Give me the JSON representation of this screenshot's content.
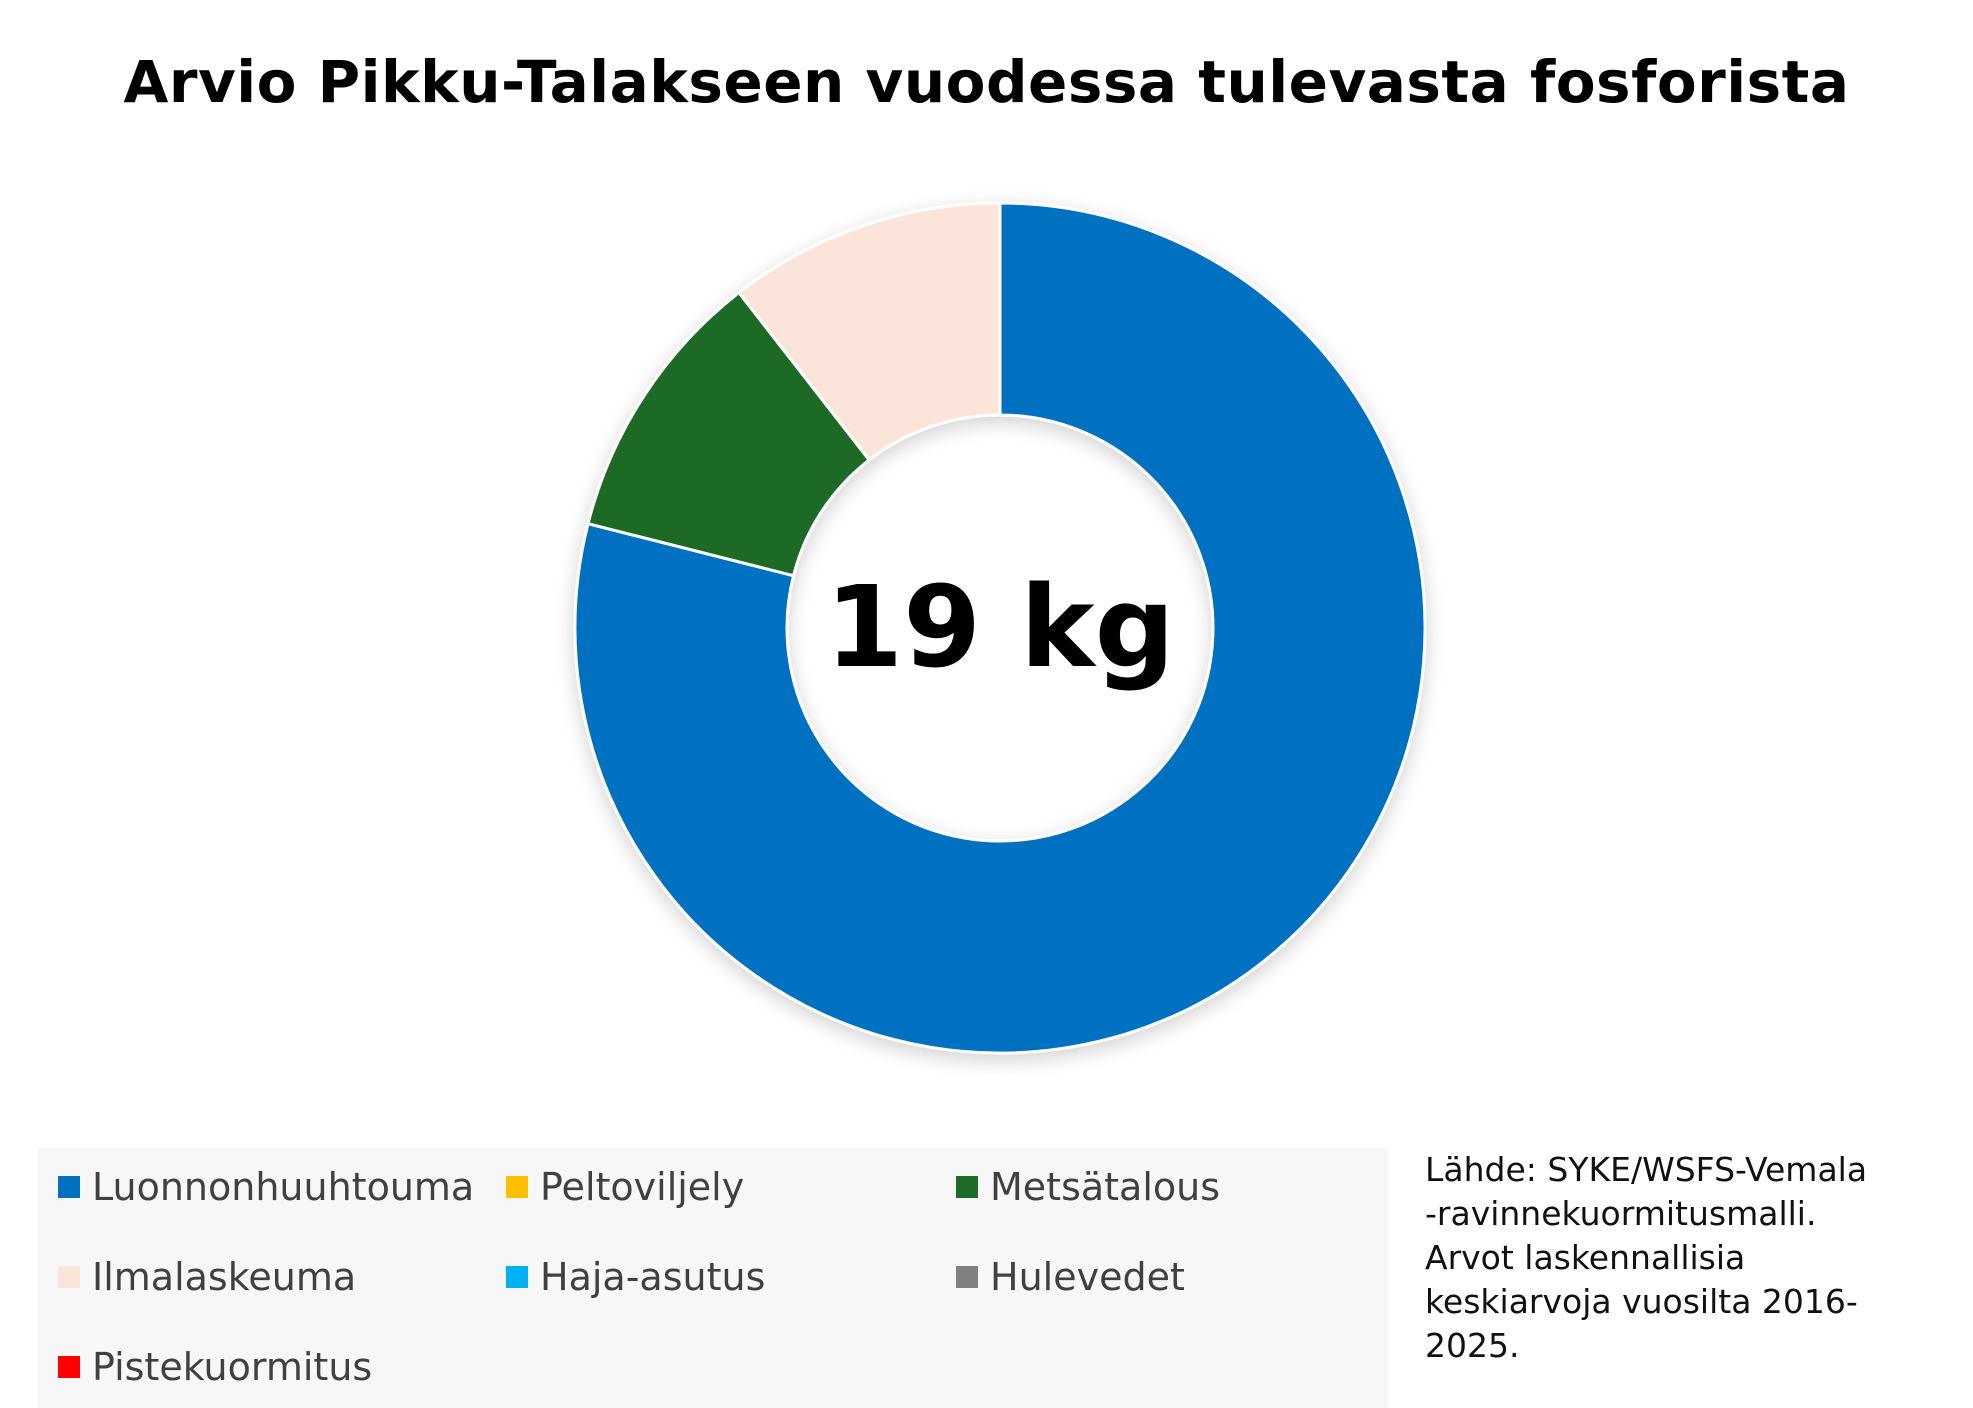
{
  "chart_data": {
    "type": "pie",
    "title": "Arvio Pikku-Talakseen vuodessa tulevasta fosforista",
    "center_label": "19 kg",
    "categories": [
      "Luonnonhuuhtouma",
      "Peltoviljely",
      "Metsätalous",
      "Ilmalaskeuma",
      "Haja-asutus",
      "Hulevedet",
      "Pistekuormitus"
    ],
    "values": [
      15,
      0,
      2,
      2,
      0,
      0,
      0
    ],
    "colors": [
      "#0070C0",
      "#FFC000",
      "#1E6B28",
      "#FBE4D9",
      "#00B0F0",
      "#808080",
      "#FF0000"
    ],
    "legend_position": "bottom"
  },
  "legend": {
    "items": [
      {
        "label": "Luonnonhuuhtouma",
        "color": "#0070C0"
      },
      {
        "label": "Peltoviljely",
        "color": "#FFC000"
      },
      {
        "label": "Metsätalous",
        "color": "#1E6B28"
      },
      {
        "label": "Ilmalaskeuma",
        "color": "#FBE4D9"
      },
      {
        "label": "Haja-asutus",
        "color": "#00B0F0"
      },
      {
        "label": "Hulevedet",
        "color": "#808080"
      },
      {
        "label": "Pistekuormitus",
        "color": "#FF0000"
      }
    ]
  },
  "source": {
    "lines": [
      "Lähde: SYKE/WSFS-Vemala",
      "-ravinnekuormitusmalli.",
      "Arvot laskennallisia",
      "keskiarvoja vuosilta 2016-",
      "2025."
    ]
  }
}
